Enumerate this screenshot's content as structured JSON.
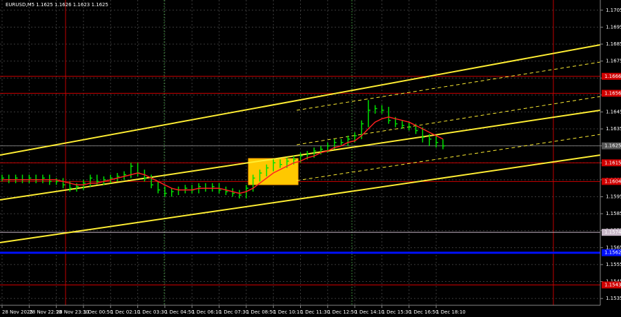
{
  "chart_data": {
    "type": "ohlc",
    "title": "EURUSD,M5  1.1625 1.1626 1.1623 1.1625",
    "categories": [
      "28 Nov 2025",
      null,
      null,
      null,
      "28 Nov 22:10",
      null,
      null,
      null,
      "28 Nov 23:30",
      null,
      null,
      null,
      "1 Dec 00:50",
      null,
      null,
      null,
      "1 Dec 02:10",
      null,
      null,
      null,
      "1 Dec 03:30",
      null,
      null,
      null,
      "1 Dec 04:50",
      null,
      null,
      null,
      "1 Dec 06:10",
      null,
      null,
      null,
      "1 Dec 07:30",
      null,
      null,
      null,
      "1 Dec 08:50",
      null,
      null,
      null,
      "1 Dec 10:10",
      null,
      null,
      null,
      "1 Dec 11:30",
      null,
      null,
      null,
      "1 Dec 12:50",
      null,
      null,
      null,
      "1 Dec 14:10",
      null,
      null,
      null,
      "1 Dec 15:30",
      null,
      null,
      null,
      "1 Dec 16:50",
      null,
      null,
      null,
      "1 Dec 18:10",
      null
    ],
    "high": [
      1.1608,
      1.1608,
      1.1608,
      1.1608,
      1.1608,
      1.1608,
      1.1608,
      1.1608,
      1.1606,
      1.1606,
      1.1604,
      1.1603,
      1.1605,
      1.1608,
      1.1608,
      1.1607,
      1.1608,
      1.1609,
      1.161,
      1.1615,
      1.1615,
      1.1611,
      1.1608,
      1.1604,
      1.1601,
      1.16,
      1.1601,
      1.1602,
      1.1602,
      1.1603,
      1.1603,
      1.1603,
      1.1603,
      1.1601,
      1.16,
      1.1599,
      1.1602,
      1.1608,
      1.1611,
      1.1614,
      1.1617,
      1.1617,
      1.1618,
      1.1619,
      1.1621,
      1.1622,
      1.1624,
      1.1625,
      1.1627,
      1.1629,
      1.1629,
      1.1631,
      1.1633,
      1.164,
      1.1652,
      1.1649,
      1.1649,
      1.1648,
      1.1642,
      1.164,
      1.1639,
      1.1638,
      1.1636,
      1.1632,
      1.1631,
      1.1629
    ],
    "low": [
      1.1604,
      1.1603,
      1.1603,
      1.1603,
      1.1603,
      1.1603,
      1.1603,
      1.1602,
      1.1602,
      1.16,
      1.1598,
      1.1598,
      1.1599,
      1.1601,
      1.1602,
      1.1602,
      1.1603,
      1.1604,
      1.1605,
      1.1606,
      1.1607,
      1.1604,
      1.16,
      1.1597,
      1.1595,
      1.1595,
      1.1596,
      1.1597,
      1.1597,
      1.1597,
      1.1598,
      1.1598,
      1.1597,
      1.1596,
      1.1595,
      1.1594,
      1.1594,
      1.1598,
      1.1604,
      1.1607,
      1.161,
      1.1612,
      1.1612,
      1.1614,
      1.1615,
      1.1617,
      1.1618,
      1.162,
      1.1621,
      1.1623,
      1.1625,
      1.1625,
      1.1627,
      1.1629,
      1.1636,
      1.1644,
      1.1644,
      1.1638,
      1.1636,
      1.1635,
      1.1634,
      1.1632,
      1.1627,
      1.1625,
      1.1624,
      1.1623
    ],
    "close": [
      1.1606,
      1.1605,
      1.1606,
      1.1605,
      1.1606,
      1.1605,
      1.1606,
      1.1604,
      1.1604,
      1.1602,
      1.16,
      1.1601,
      1.1603,
      1.1606,
      1.1604,
      1.1605,
      1.1606,
      1.1607,
      1.1608,
      1.1613,
      1.1609,
      1.1606,
      1.1602,
      1.1599,
      1.1597,
      1.1598,
      1.1599,
      1.16,
      1.1599,
      1.1601,
      1.16,
      1.1601,
      1.1599,
      1.1598,
      1.1597,
      1.1596,
      1.16,
      1.1606,
      1.1609,
      1.1612,
      1.1615,
      1.1614,
      1.1616,
      1.1617,
      1.1619,
      1.162,
      1.1622,
      1.1623,
      1.1625,
      1.1627,
      1.1627,
      1.1629,
      1.1631,
      1.1638,
      1.1646,
      1.1647,
      1.1646,
      1.164,
      1.1638,
      1.1637,
      1.1636,
      1.1634,
      1.163,
      1.1629,
      1.1627,
      1.1625
    ],
    "color": "#00e000",
    "moving_average": {
      "color": "#ff2020",
      "values": [
        1.1605,
        1.1605,
        1.1605,
        1.1605,
        1.1605,
        1.1605,
        1.1605,
        1.1605,
        1.1605,
        1.1604,
        1.1603,
        1.1602,
        1.1602,
        1.1603,
        1.1603,
        1.1604,
        1.1605,
        1.1606,
        1.1607,
        1.1608,
        1.1609,
        1.1608,
        1.1606,
        1.1604,
        1.1602,
        1.16,
        1.1599,
        1.1599,
        1.1599,
        1.16,
        1.16,
        1.16,
        1.16,
        1.1599,
        1.1598,
        1.1597,
        1.1598,
        1.16,
        1.1603,
        1.1606,
        1.1609,
        1.1611,
        1.1613,
        1.1615,
        1.1616,
        1.1618,
        1.1619,
        1.1621,
        1.1622,
        1.1624,
        1.1625,
        1.1627,
        1.1628,
        1.1631,
        1.1635,
        1.1639,
        1.1641,
        1.1642,
        1.1641,
        1.164,
        1.1639,
        1.1637,
        1.1635,
        1.1633,
        1.1631,
        1.1629
      ]
    },
    "ylim": [
      1.1531,
      1.1711
    ],
    "yticks": [
      1.1535,
      1.1545,
      1.1555,
      1.1565,
      1.1575,
      1.1585,
      1.1595,
      1.1605,
      1.1615,
      1.1625,
      1.1635,
      1.1645,
      1.1655,
      1.1665,
      1.1675,
      1.1685,
      1.1695,
      1.1705
    ],
    "grid": true,
    "levels": [
      {
        "value": 1.1666,
        "color": "#d00000"
      },
      {
        "value": 1.1656,
        "color": "#d00000"
      },
      {
        "value": 1.1615,
        "color": "#d00000"
      },
      {
        "value": 1.1604,
        "color": "#d00000"
      },
      {
        "value": 1.1574,
        "color": "#c8b8c8"
      },
      {
        "value": 1.1562,
        "color": "#0010ff"
      },
      {
        "value": 1.1543,
        "color": "#d00000"
      }
    ],
    "last_price": 1.1625
  }
}
